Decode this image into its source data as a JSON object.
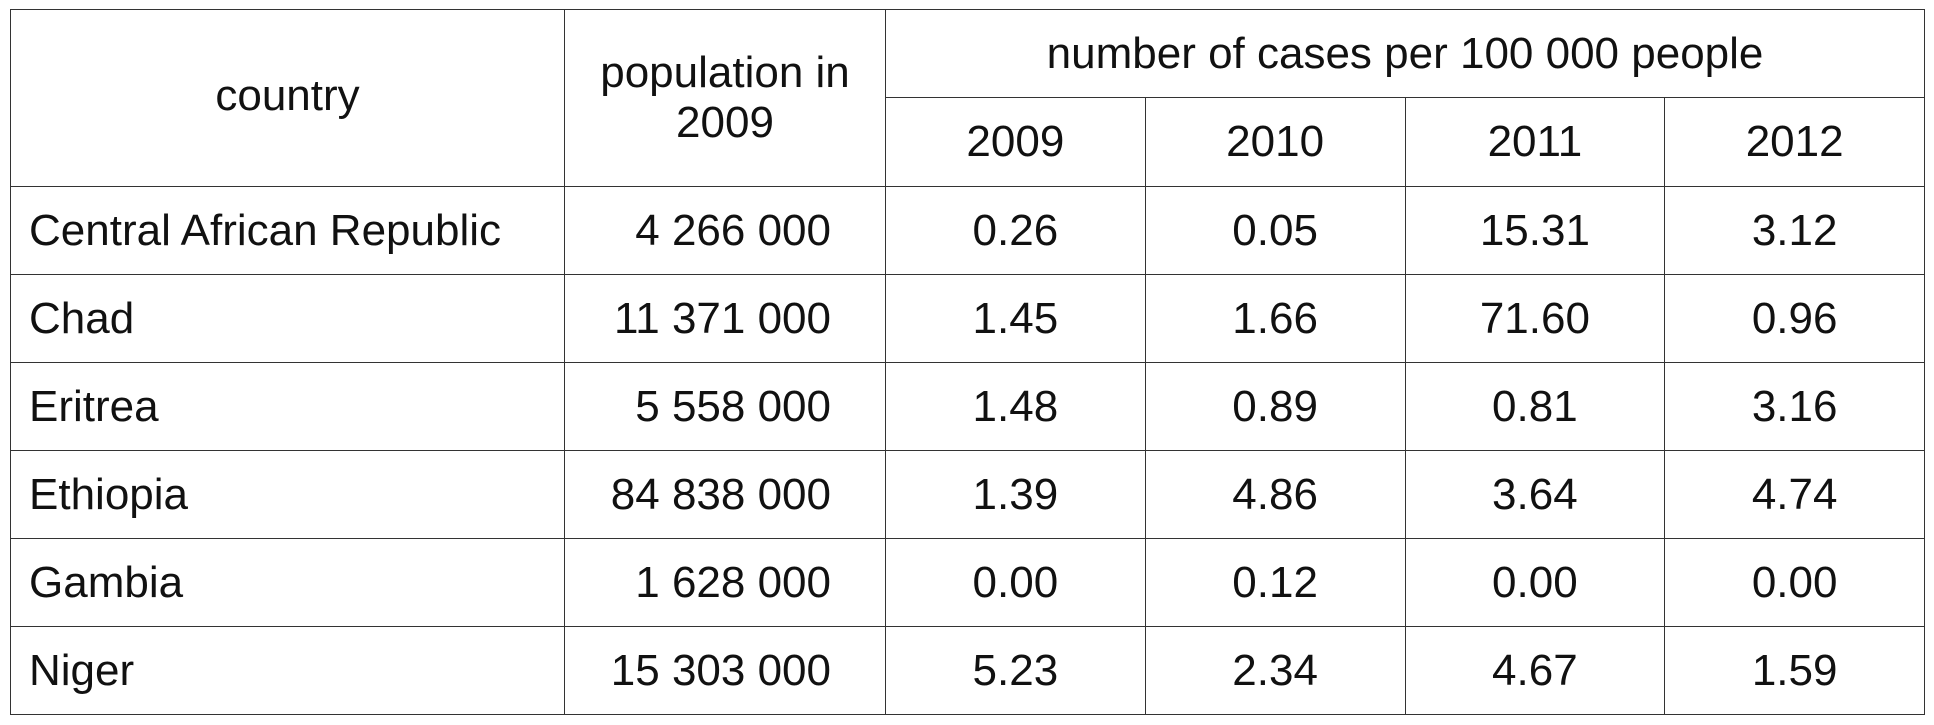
{
  "table": {
    "header": {
      "country": "country",
      "population": "population in 2009",
      "group": "number of cases per 100 000 people",
      "years": [
        "2009",
        "2010",
        "2011",
        "2012"
      ]
    },
    "rows": [
      {
        "country": "Central African Republic",
        "population": "4 266 000",
        "values": [
          "0.26",
          "0.05",
          "15.31",
          "3.12"
        ]
      },
      {
        "country": "Chad",
        "population": "11 371 000",
        "values": [
          "1.45",
          "1.66",
          "71.60",
          "0.96"
        ]
      },
      {
        "country": "Eritrea",
        "population": "5 558 000",
        "values": [
          "1.48",
          "0.89",
          "0.81",
          "3.16"
        ]
      },
      {
        "country": "Ethiopia",
        "population": "84 838 000",
        "values": [
          "1.39",
          "4.86",
          "3.64",
          "4.74"
        ]
      },
      {
        "country": "Gambia",
        "population": "1 628 000",
        "values": [
          "0.00",
          "0.12",
          "0.00",
          "0.00"
        ]
      },
      {
        "country": "Niger",
        "population": "15 303 000",
        "values": [
          "5.23",
          "2.34",
          "4.67",
          "1.59"
        ]
      }
    ]
  }
}
